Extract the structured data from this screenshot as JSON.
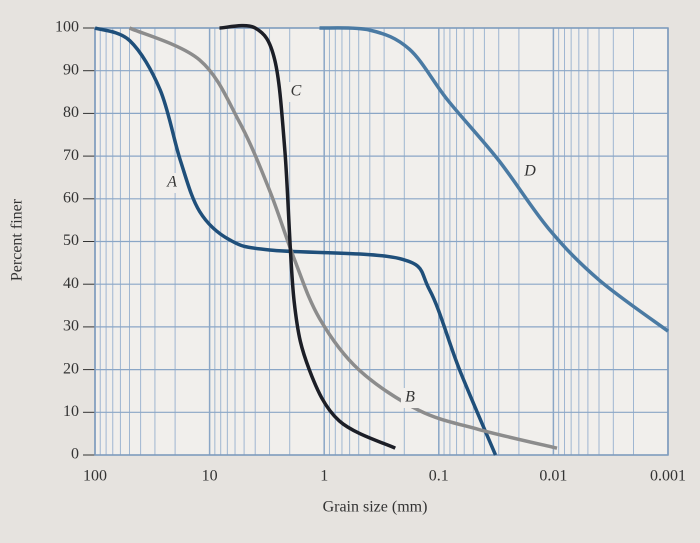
{
  "chart_data": {
    "type": "line",
    "x_label": "Grain size (mm)",
    "y_label": "Percent finer",
    "x_scale": "log",
    "grid": true,
    "xlim": [
      100,
      0.001
    ],
    "xticks": [
      100,
      10,
      1,
      0.1,
      0.01,
      0.001
    ],
    "ylim": [
      0,
      100
    ],
    "yticks": [
      0,
      10,
      20,
      30,
      40,
      50,
      60,
      70,
      80,
      90,
      100
    ],
    "series": [
      {
        "name": "A",
        "color": "#1f4f7a",
        "x": [
          100,
          49.6,
          27,
          18,
          12.2,
          6.7,
          3.0,
          0.22,
          0.12,
          0.066,
          0.032
        ],
        "values": [
          100,
          97,
          85.5,
          69,
          57,
          50.4,
          48,
          46,
          38.6,
          20,
          0
        ]
      },
      {
        "name": "B",
        "color": "#8c8c8c",
        "x": [
          50,
          12.2,
          5.5,
          3,
          1.83,
          1.1,
          0.5,
          0.15,
          0.045,
          0.0093
        ],
        "values": [
          100,
          92.5,
          78,
          62,
          46,
          32,
          20,
          10.5,
          6,
          1.6
        ]
      },
      {
        "name": "C",
        "color": "#1c1e26",
        "x": [
          8.2,
          4.0,
          2.7,
          2.2,
          1.83,
          1.35,
          0.74,
          0.24
        ],
        "values": [
          100,
          100,
          92.5,
          71,
          36,
          20,
          8,
          1.6
        ]
      },
      {
        "name": "D",
        "color": "#4a7aa3",
        "x": [
          1.1,
          0.4,
          0.18,
          0.083,
          0.03,
          0.011,
          0.004,
          0.001
        ],
        "values": [
          100,
          99.5,
          95,
          83,
          69,
          53,
          41,
          29
        ]
      }
    ]
  }
}
